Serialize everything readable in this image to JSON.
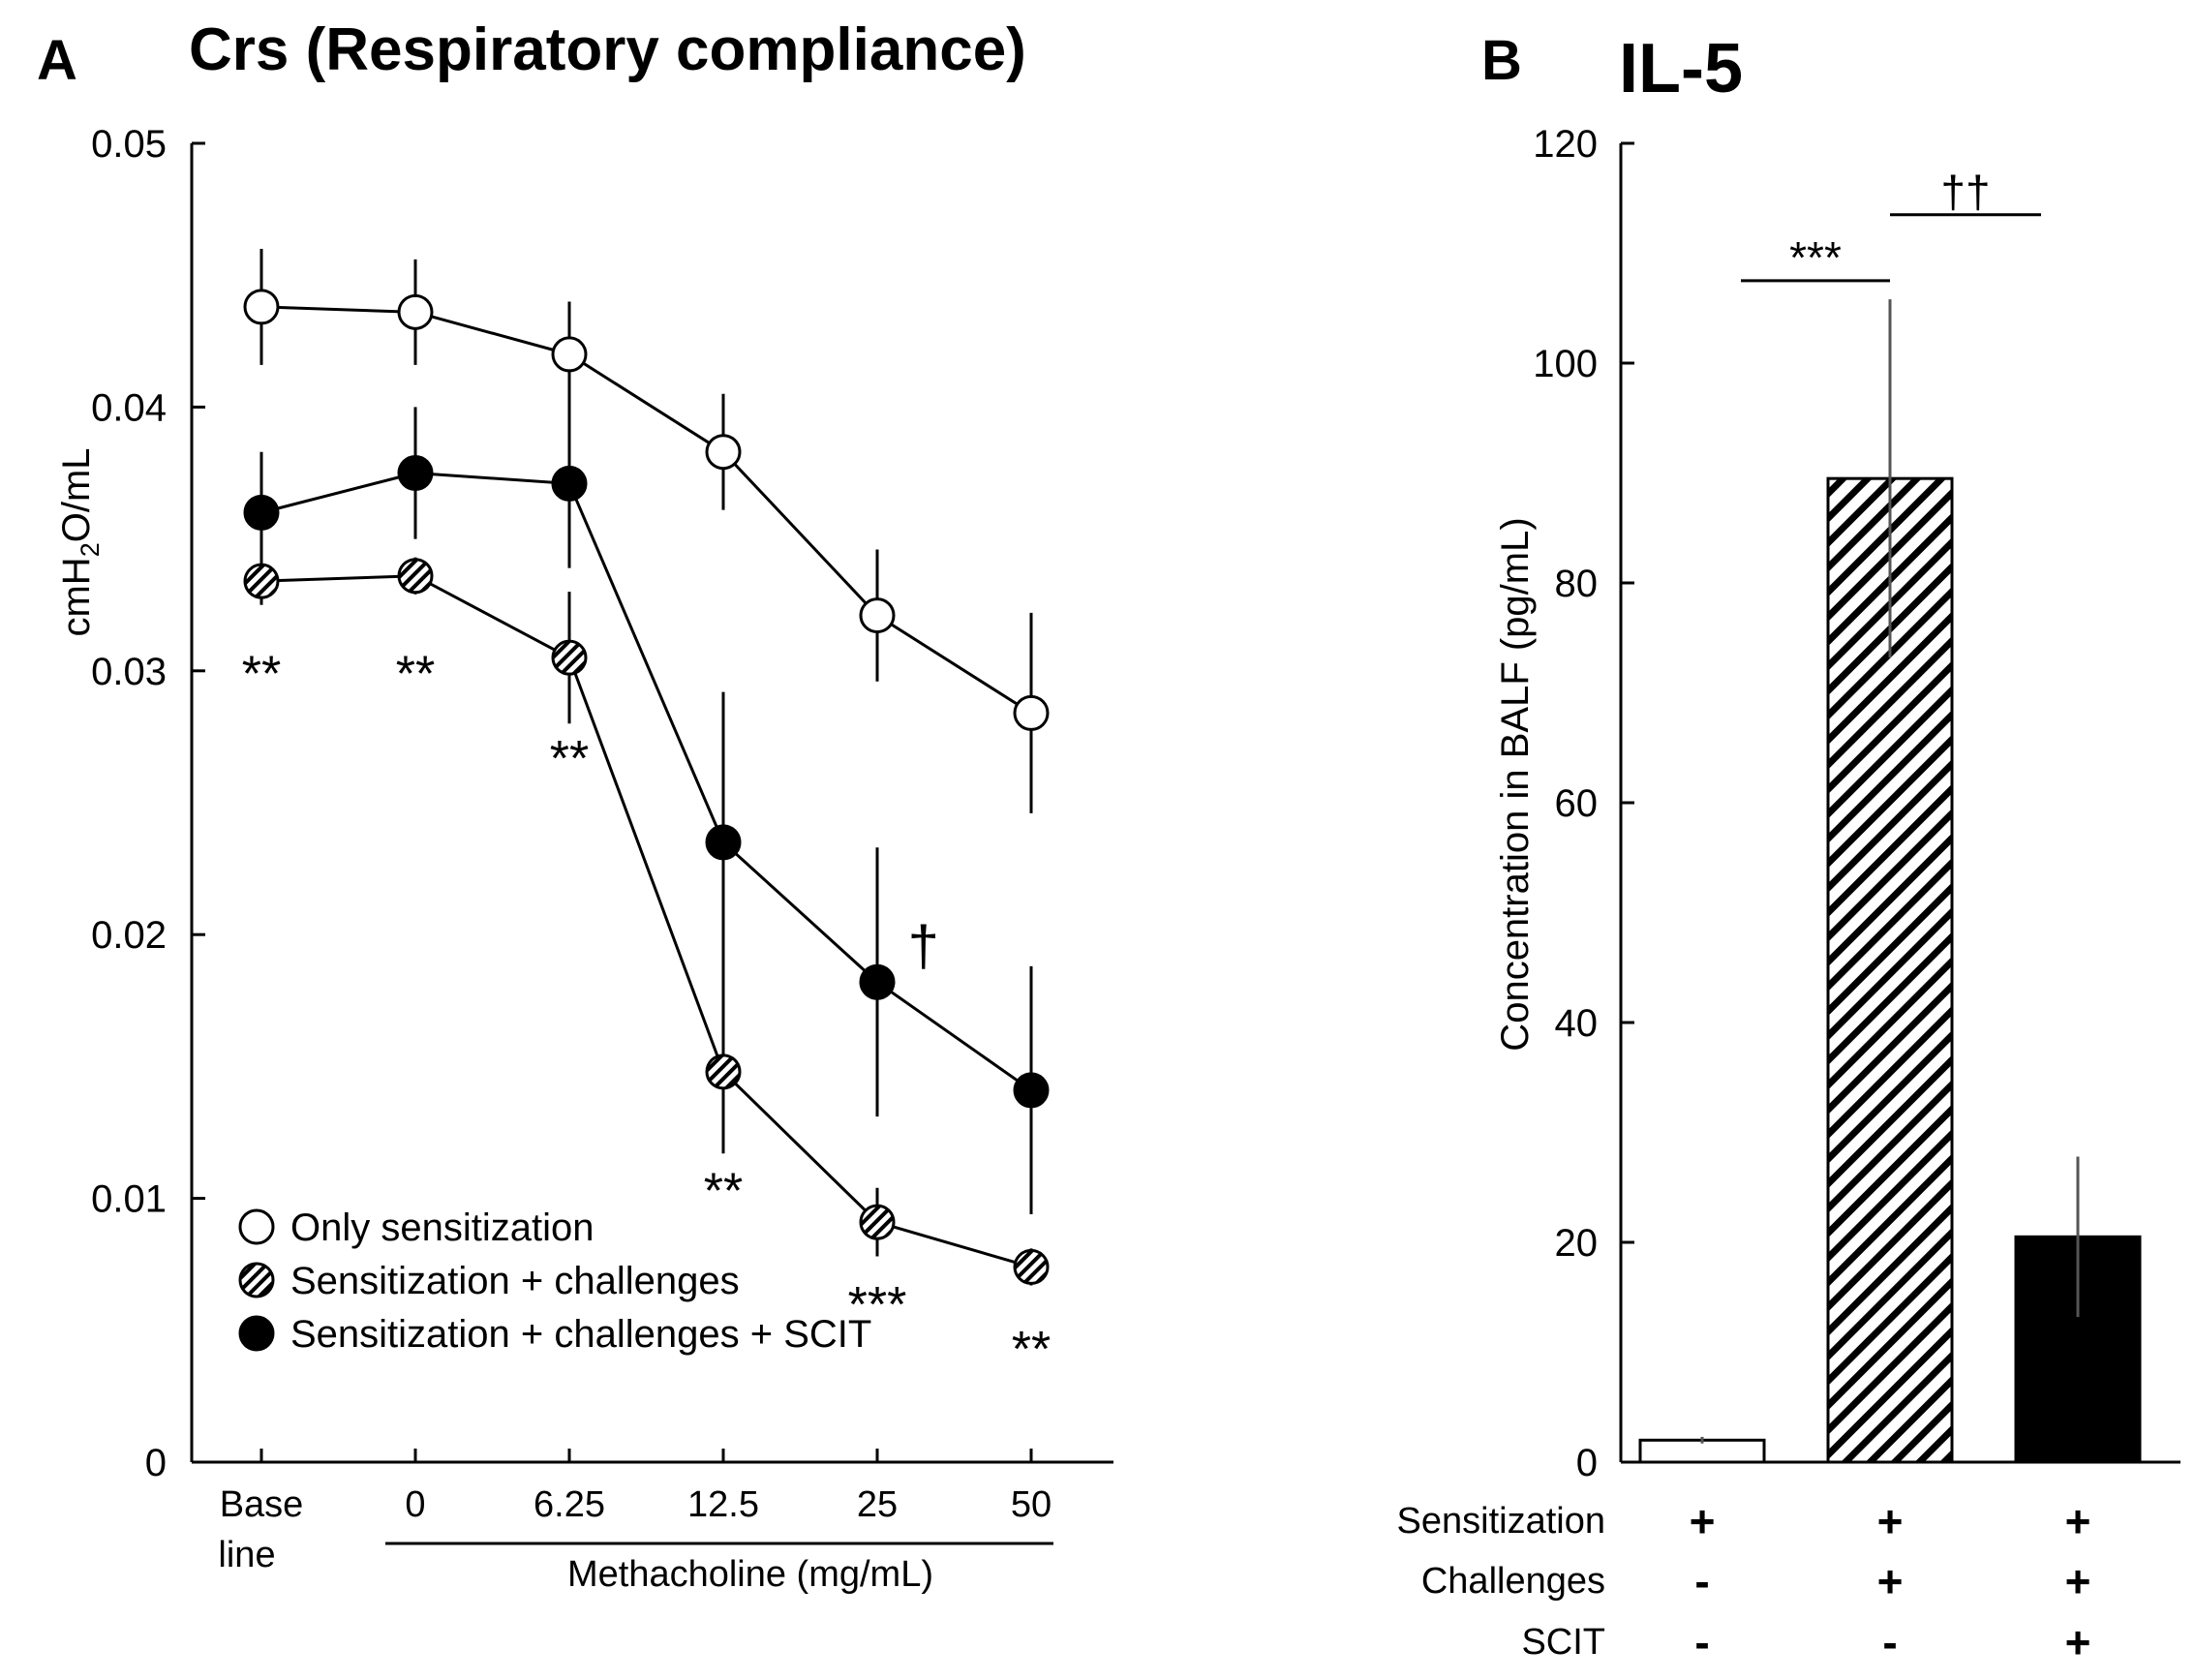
{
  "chart_data": [
    {
      "panel": "A",
      "type": "line",
      "title": "Crs (Respiratory compliance)",
      "ylabel": {
        "prefix": "cmH",
        "sub": "2",
        "suffix": "O/mL"
      },
      "xlabel": "Methacholine (mg/mL)",
      "categories": [
        {
          "line1": "Base",
          "line2": "line"
        },
        {
          "line1": "0"
        },
        {
          "line1": "6.25"
        },
        {
          "line1": "12.5"
        },
        {
          "line1": "25"
        },
        {
          "line1": "50"
        }
      ],
      "ylim": [
        0,
        0.05
      ],
      "yticks": [
        {
          "v": 0,
          "label": "0"
        },
        {
          "v": 0.01,
          "label": "0.01"
        },
        {
          "v": 0.02,
          "label": "0.02"
        },
        {
          "v": 0.03,
          "label": "0.03"
        },
        {
          "v": 0.04,
          "label": "0.04"
        },
        {
          "v": 0.05,
          "label": "0.05"
        }
      ],
      "legend_position": "bottom-left",
      "series": [
        {
          "name": "Only sensitization",
          "marker": "open",
          "values": [
            0.0438,
            0.0436,
            0.042,
            0.0383,
            0.0321,
            0.0284
          ],
          "errors": [
            0.0022,
            0.002,
            0.002,
            0.0022,
            0.0025,
            0.0038
          ]
        },
        {
          "name": "Sensitization + challenges",
          "marker": "hatched",
          "values": [
            0.0334,
            0.0336,
            0.0305,
            0.0148,
            0.0091,
            0.0074
          ],
          "errors": [
            0.0009,
            0.0007,
            0.0025,
            0.0031,
            0.0013,
            0.0007
          ]
        },
        {
          "name": "Sensitization + challenges + SCIT",
          "marker": "filled",
          "values": [
            0.036,
            0.0375,
            0.0371,
            0.0235,
            0.0182,
            0.0141
          ],
          "errors": [
            0.0023,
            0.0025,
            0.0032,
            0.0057,
            0.0051,
            0.0047
          ]
        }
      ],
      "annotations": [
        {
          "text": "**",
          "category": 0,
          "value": 0.0307
        },
        {
          "text": "**",
          "category": 1,
          "value": 0.0307
        },
        {
          "text": "**",
          "category": 2,
          "value": 0.0275
        },
        {
          "text": "**",
          "category": 3,
          "value": 0.0111
        },
        {
          "text": "***",
          "category": 4,
          "value": 0.0068
        },
        {
          "text": "**",
          "category": 5,
          "value": 0.0051
        },
        {
          "text": "†",
          "category": 4.3,
          "value": 0.0195
        }
      ]
    },
    {
      "panel": "B",
      "type": "bar",
      "title": "IL-5",
      "ylabel": "Concentration in BALF (pg/mL)",
      "ylim": [
        0,
        120
      ],
      "yticks": [
        {
          "v": 0,
          "label": "0"
        },
        {
          "v": 20,
          "label": "20"
        },
        {
          "v": 40,
          "label": "40"
        },
        {
          "v": 60,
          "label": "60"
        },
        {
          "v": 80,
          "label": "80"
        },
        {
          "v": 100,
          "label": "100"
        },
        {
          "v": 120,
          "label": "120"
        }
      ],
      "values": [
        2,
        89.5,
        20.5
      ],
      "errors": [
        0.3,
        16.3,
        7.3
      ],
      "fills": [
        "open",
        "hatched",
        "filled"
      ],
      "row_labels": [
        "Sensitization",
        "Challenges",
        "SCIT"
      ],
      "conditions": [
        [
          "+",
          "-",
          "-"
        ],
        [
          "+",
          "+",
          "-"
        ],
        [
          "+",
          "+",
          "+"
        ]
      ],
      "significance": [
        {
          "text": "***",
          "from": 0,
          "to": 1,
          "value": 107.5
        },
        {
          "text": "††",
          "from": 1,
          "to": 2,
          "value": 113.5
        }
      ]
    }
  ]
}
